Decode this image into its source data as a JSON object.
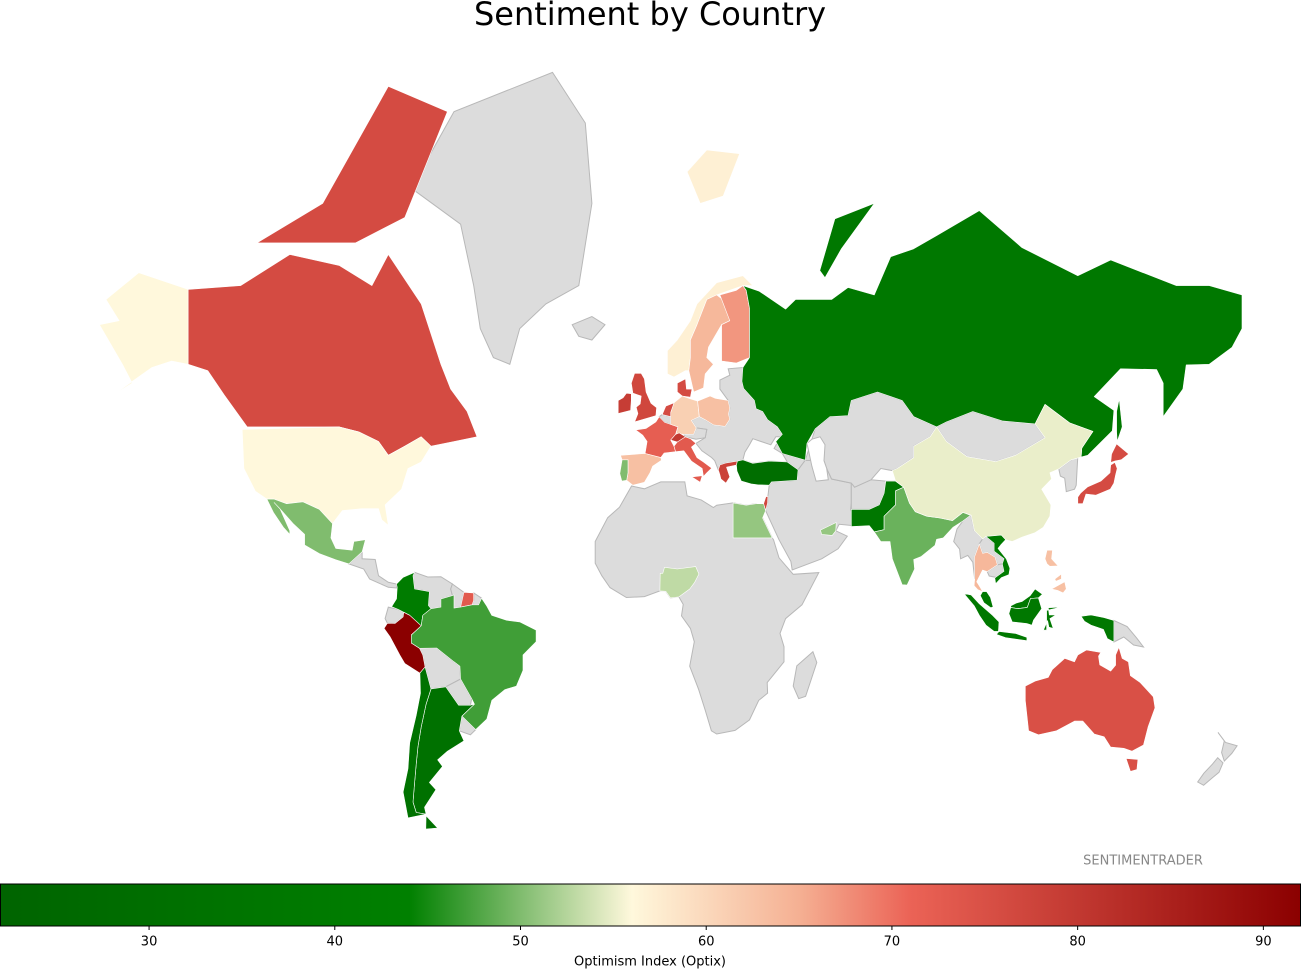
{
  "chart_data": {
    "type": "choropleth",
    "title": "Sentiment by Country",
    "values": [
      76,
      56,
      50,
      41,
      73,
      92,
      47,
      32,
      33,
      57,
      64,
      67,
      76,
      77,
      79,
      72,
      63,
      50,
      61,
      76,
      80,
      73,
      63,
      78,
      30,
      77,
      51,
      53,
      51,
      38,
      37,
      49,
      55,
      76,
      40,
      64,
      38,
      38,
      63,
      75
    ],
    "missing_color": "#dcdcdc",
    "annotation": "SENTIMENTRADER",
    "colorbar": {
      "label": "Optimism Index (Optix)",
      "lim": [
        22,
        92
      ],
      "ticks": [
        30,
        40,
        50,
        60,
        70,
        80,
        90
      ],
      "colorscale": [
        [
          22,
          "#006400"
        ],
        [
          44,
          "#008000"
        ],
        [
          56,
          "#fff8dc"
        ],
        [
          65,
          "#f5b093"
        ],
        [
          71,
          "#eb6356"
        ],
        [
          92,
          "#8b0000"
        ]
      ]
    }
  }
}
